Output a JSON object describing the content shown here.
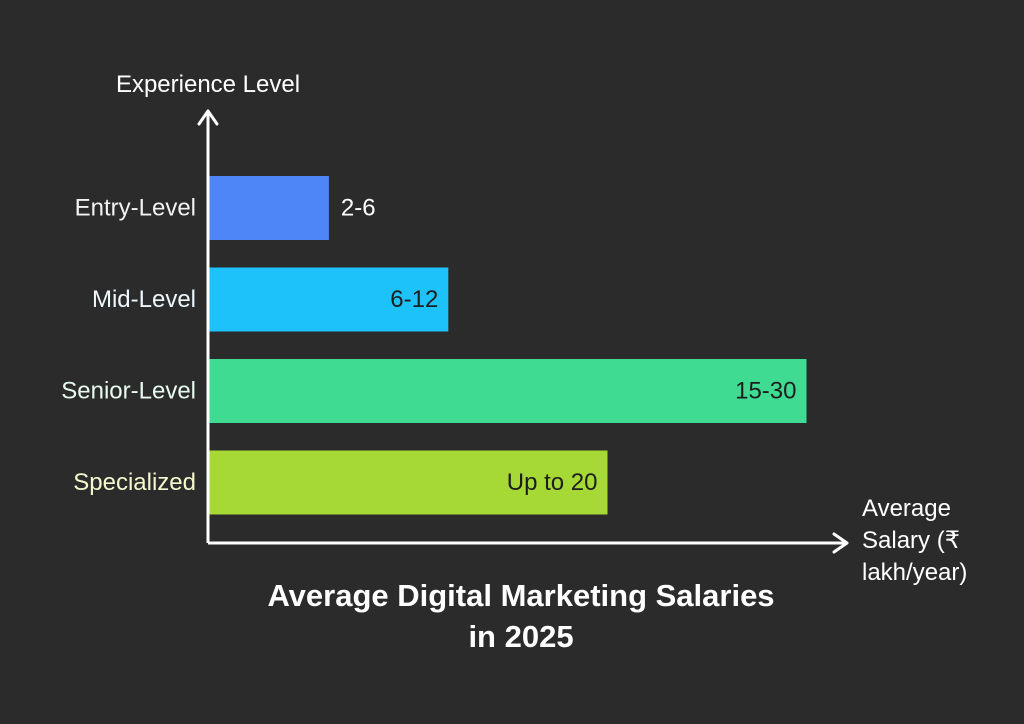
{
  "chart_data": {
    "type": "bar",
    "orientation": "horizontal",
    "title_lines": [
      "Average Digital Marketing Salaries",
      "in 2025"
    ],
    "ylabel": "Experience Level",
    "xlabel_lines": [
      "Average",
      "Salary (₹",
      "lakh/year)"
    ],
    "categories": [
      "Entry-Level",
      "Mid-Level",
      "Senior-Level",
      "Specialized"
    ],
    "value_labels": [
      "2-6",
      "6-12",
      "15-30",
      "Up to 20"
    ],
    "values": [
      6,
      12,
      30,
      20
    ],
    "xlim": [
      0,
      40
    ],
    "grid": false,
    "colors": {
      "background": "#2b2b2b",
      "axis": "#ffffff",
      "bars": [
        "#4f86f7",
        "#1ec2fa",
        "#40db93",
        "#a6d936"
      ],
      "category_labels": [
        "#f2f2f2",
        "#edf7fc",
        "#e8fbef",
        "#f5f8ce"
      ],
      "title": "#ffffff",
      "value_label_on_light": "#1e1e1e",
      "value_label_on_dark": "#ffffff"
    }
  }
}
